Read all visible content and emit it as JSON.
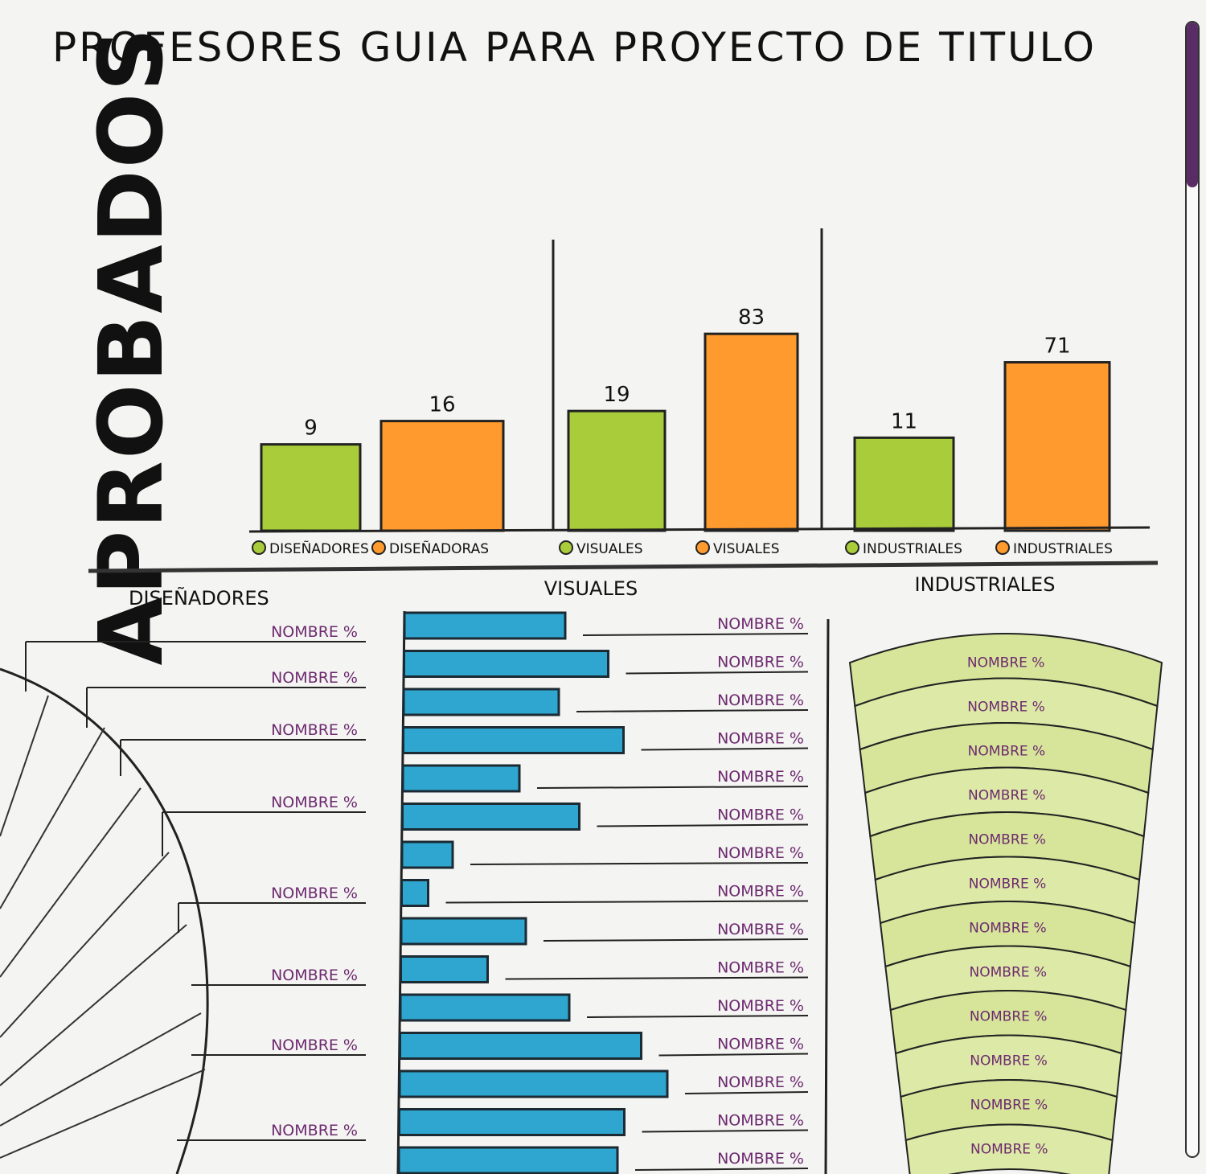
{
  "title": "PROFESORES GUIA PARA PROYECTO DE TITULO",
  "side_label": "APROBADOS",
  "colors": {
    "green": "#a8cc3a",
    "orange": "#ff9a2e",
    "blue": "#2ea6cf",
    "pale_green": "#d6e59a",
    "purple": "#6d2a6f"
  },
  "chart_data": [
    {
      "type": "bar",
      "title": "APROBADOS",
      "categories": [
        "DISEÑADORES",
        "DISEÑADORAS",
        "VISUALES",
        "VISUALES",
        "INDUSTRIALES",
        "INDUSTRIALES"
      ],
      "values": [
        9,
        16,
        19,
        83,
        11,
        71
      ],
      "bar_colors": [
        "green",
        "orange",
        "green",
        "orange",
        "green",
        "orange"
      ],
      "value_labels": [
        "9",
        "16",
        "19",
        "83",
        "11",
        "71"
      ]
    },
    {
      "type": "pie",
      "title": "DISEÑADORES",
      "labels": [
        "NOMBRE %",
        "NOMBRE %",
        "NOMBRE %",
        "NOMBRE %",
        "NOMBRE %",
        "NOMBRE %",
        "NOMBRE %",
        "NOMBRE %"
      ]
    },
    {
      "type": "bar",
      "orientation": "horizontal",
      "title": "VISUALES",
      "labels": [
        "NOMBRE %",
        "NOMBRE %",
        "NOMBRE %",
        "NOMBRE %",
        "NOMBRE %",
        "NOMBRE %",
        "NOMBRE %",
        "NOMBRE %",
        "NOMBRE %",
        "NOMBRE %",
        "NOMBRE %",
        "NOMBRE %",
        "NOMBRE %",
        "NOMBRE %",
        "NOMBRE %"
      ],
      "values": [
        200,
        254,
        193,
        274,
        145,
        220,
        63,
        33,
        155,
        108,
        210,
        300,
        333,
        280,
        272
      ]
    },
    {
      "type": "funnel",
      "title": "INDUSTRIALES",
      "labels": [
        "NOMBRE %",
        "NOMBRE %",
        "NOMBRE %",
        "NOMBRE %",
        "NOMBRE %",
        "NOMBRE %",
        "NOMBRE %",
        "NOMBRE %",
        "NOMBRE %",
        "NOMBRE %",
        "NOMBRE %",
        "NOMBRE %"
      ]
    }
  ]
}
